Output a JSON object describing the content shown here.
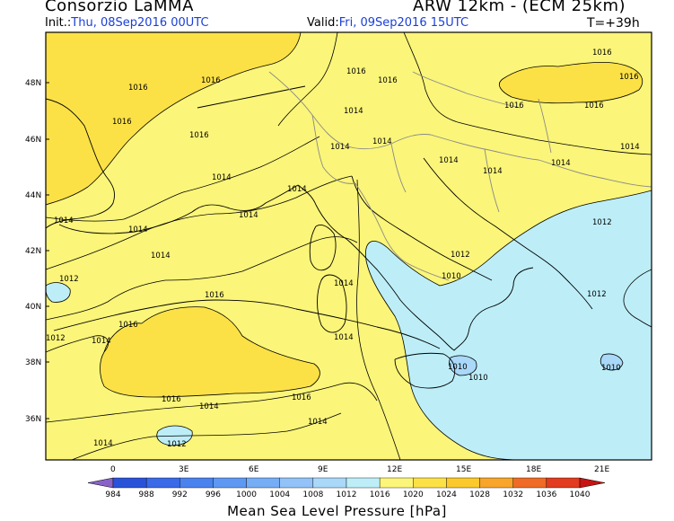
{
  "header": {
    "institution": "Consorzio LaMMA",
    "model": "ARW 12km - (ECM 25km)",
    "init_label": "Init.:",
    "init_value": "Thu, 08Sep2016 00UTC",
    "valid_label": "Valid:",
    "valid_value": "Fri, 09Sep2016 15UTC",
    "lead_time": "T=+39h"
  },
  "map": {
    "lat_labels": [
      "48N",
      "46N",
      "44N",
      "42N",
      "40N",
      "38N",
      "36N"
    ],
    "lon_labels": [
      "0",
      "3E",
      "6E",
      "9E",
      "12E",
      "15E",
      "18E",
      "21E"
    ],
    "isobar_labels": [
      "1016",
      "1016",
      "1016",
      "1016",
      "1016",
      "1016",
      "1016",
      "1016",
      "1016",
      "1016",
      "1014",
      "1014",
      "1014",
      "1014",
      "1014",
      "1014",
      "1014",
      "1014",
      "1014",
      "1014",
      "1014",
      "1014",
      "1014",
      "1014",
      "1014",
      "1014",
      "1014",
      "1012",
      "1012",
      "1012",
      "1012",
      "1012",
      "1012",
      "1010",
      "1010",
      "1010",
      "1010",
      "1016",
      "1016",
      "1014",
      "1016",
      "1016",
      "1014"
    ]
  },
  "colorbar": {
    "ticks": [
      "984",
      "988",
      "992",
      "996",
      "1000",
      "1004",
      "1008",
      "1012",
      "1016",
      "1020",
      "1024",
      "1028",
      "1032",
      "1036",
      "1040"
    ],
    "colors": [
      "#2a52d9",
      "#3a6ae8",
      "#4a82ee",
      "#5e98f2",
      "#76aef5",
      "#92c2f7",
      "#a9d8f8",
      "#bdeef8",
      "#fbf579",
      "#fce146",
      "#fbc92b",
      "#f8a52a",
      "#ef6b26",
      "#e23b1f",
      "#c81313"
    ],
    "title": "Mean Sea Level Pressure [hPa]"
  }
}
